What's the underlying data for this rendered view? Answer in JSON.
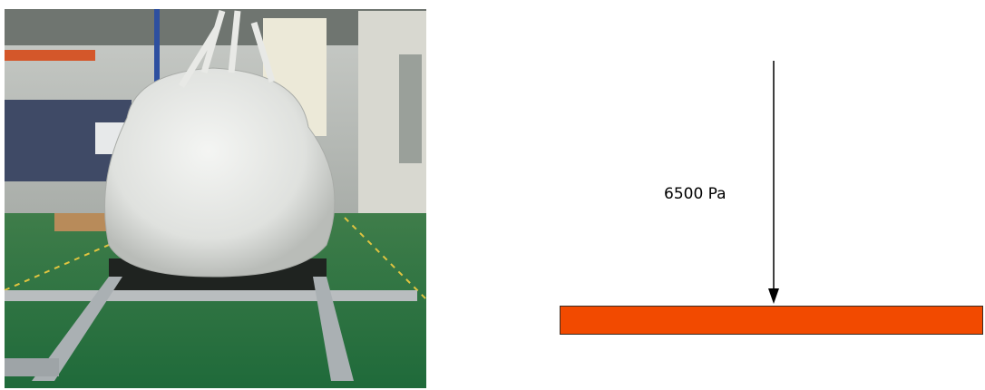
{
  "diagram": {
    "load_label": "6500 Pa"
  }
}
